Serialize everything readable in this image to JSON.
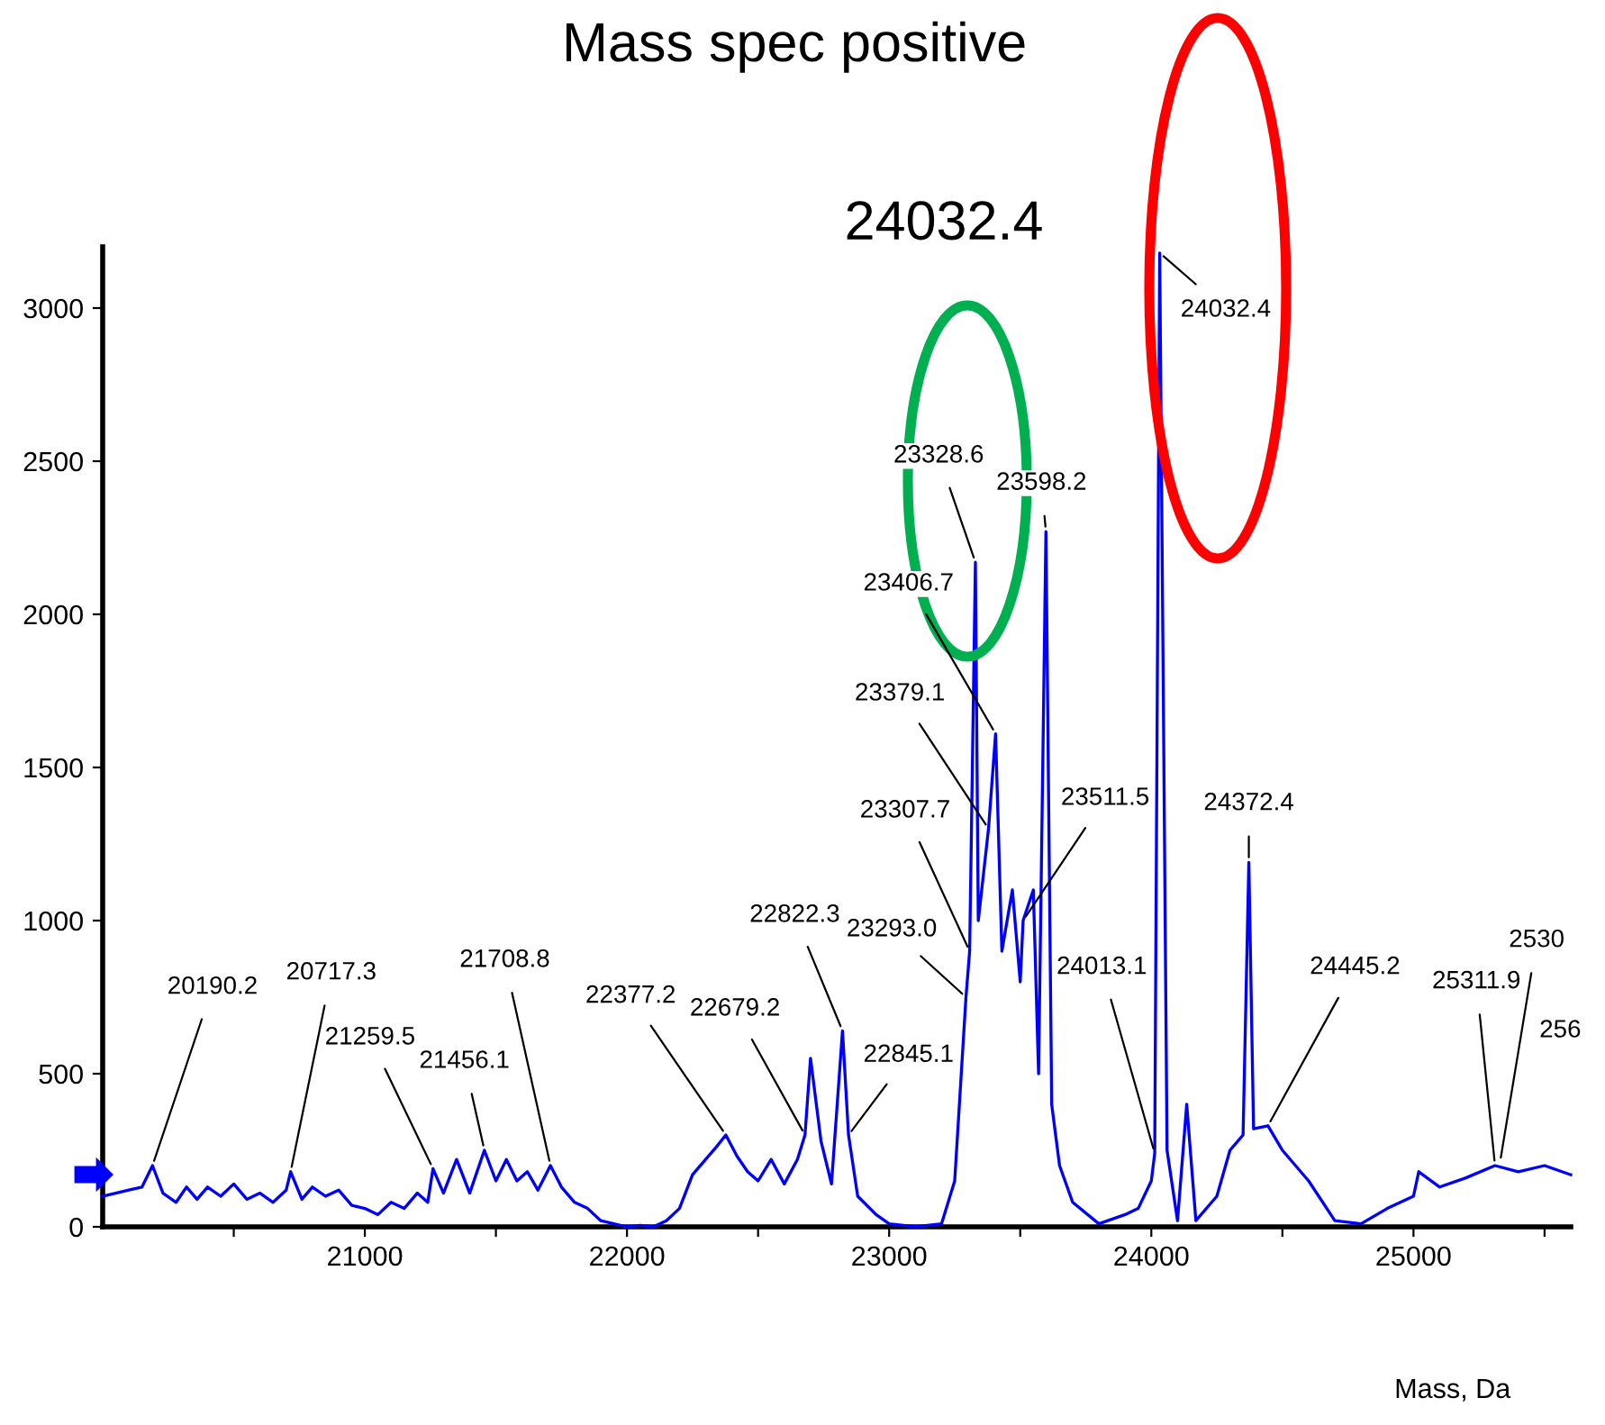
{
  "chart_data": {
    "type": "line",
    "title": "Mass spec positive",
    "xlabel": "Mass, Da",
    "x": [
      20000,
      20050,
      20100,
      20150,
      20190,
      20230,
      20280,
      20320,
      20360,
      20400,
      20450,
      20500,
      20550,
      20600,
      20650,
      20700,
      20717,
      20760,
      20800,
      20850,
      20900,
      20950,
      21000,
      21050,
      21100,
      21150,
      21200,
      21240,
      21260,
      21300,
      21350,
      21400,
      21456,
      21500,
      21540,
      21580,
      21620,
      21660,
      21708,
      21750,
      21800,
      21850,
      21900,
      21950,
      22000,
      22050,
      22100,
      22150,
      22200,
      22250,
      22300,
      22340,
      22377,
      22420,
      22460,
      22500,
      22550,
      22600,
      22650,
      22679,
      22700,
      22740,
      22780,
      22822,
      22845,
      22880,
      22950,
      23000,
      23100,
      23200,
      23250,
      23293,
      23307,
      23329,
      23340,
      23379,
      23406,
      23430,
      23470,
      23500,
      23511,
      23550,
      23570,
      23598,
      23620,
      23650,
      23700,
      23800,
      23900,
      23950,
      24000,
      24013,
      24032,
      24060,
      24100,
      24135,
      24170,
      24250,
      24300,
      24350,
      24372,
      24390,
      24445,
      24500,
      24600,
      24700,
      24800,
      24900,
      25000,
      25020,
      25100,
      25200,
      25311,
      25400,
      25500,
      25600
    ],
    "series": [
      {
        "color": "#0000ff",
        "values": [
          100,
          110,
          120,
          130,
          200,
          110,
          80,
          130,
          90,
          130,
          100,
          140,
          90,
          110,
          80,
          120,
          180,
          90,
          130,
          100,
          120,
          70,
          60,
          40,
          80,
          60,
          110,
          80,
          190,
          110,
          220,
          110,
          250,
          150,
          220,
          150,
          180,
          120,
          200,
          130,
          80,
          60,
          20,
          10,
          0,
          5,
          0,
          20,
          60,
          170,
          220,
          260,
          300,
          230,
          180,
          150,
          220,
          140,
          220,
          300,
          550,
          280,
          140,
          640,
          300,
          100,
          40,
          10,
          0,
          10,
          150,
          750,
          900,
          2170,
          1000,
          1300,
          1610,
          900,
          1100,
          800,
          1000,
          1100,
          500,
          2270,
          400,
          200,
          80,
          10,
          40,
          60,
          150,
          240,
          3180,
          250,
          20,
          400,
          20,
          100,
          250,
          300,
          1190,
          320,
          330,
          250,
          150,
          20,
          10,
          60,
          100,
          180,
          130,
          160,
          200,
          180,
          200,
          170
        ]
      }
    ],
    "xlim": [
      20000,
      25600
    ],
    "xticks": [
      {
        "value": 20500,
        "label": null
      },
      21000,
      {
        "value": 21500,
        "label": null
      },
      22000,
      {
        "value": 22500,
        "label": null
      },
      23000,
      {
        "value": 23500,
        "label": null
      },
      24000,
      {
        "value": 24500,
        "label": null
      },
      25000,
      {
        "value": 25500,
        "label": null
      }
    ],
    "ylim": [
      0,
      3200
    ],
    "yticks": [
      0,
      500,
      1000,
      1500,
      2000,
      2500,
      3000
    ],
    "grid": false,
    "marker": "none",
    "line_style": "solid",
    "annotations": [
      "24032.4",
      {
        "text": "20190.2",
        "x": 20190,
        "y": 200
      },
      {
        "text": "20717.3",
        "x": 20717,
        "y": 180
      },
      {
        "text": "21259.5",
        "x": 21260,
        "y": 190
      },
      {
        "text": "21456.1",
        "x": 21456,
        "y": 250
      },
      {
        "text": "21708.8",
        "x": 21708,
        "y": 200
      },
      {
        "text": "22377.2",
        "x": 22377,
        "y": 300
      },
      {
        "text": "22679.2",
        "x": 22679,
        "y": 300
      },
      {
        "text": "22822.3",
        "x": 22822,
        "y": 640
      },
      {
        "text": "22845.1",
        "x": 22845,
        "y": 300
      },
      {
        "text": "23293.0",
        "x": 23293,
        "y": 750
      },
      {
        "text": "23307.7",
        "x": 23307,
        "y": 900
      },
      {
        "text": "23379.1",
        "x": 23379,
        "y": 1300
      },
      {
        "text": "23406.7",
        "x": 23406,
        "y": 1610
      },
      {
        "text": "23328.6",
        "x": 23329,
        "y": 2170
      },
      {
        "text": "23598.2",
        "x": 23598,
        "y": 2270
      },
      {
        "text": "23511.5",
        "x": 23511,
        "y": 1000
      },
      {
        "text": "24013.1",
        "x": 24013,
        "y": 240
      },
      {
        "text": "24032.4",
        "x": 24032,
        "y": 3180
      },
      {
        "text": "24372.4",
        "x": 24372,
        "y": 1190
      },
      {
        "text": "24445.2",
        "x": 24445,
        "y": 330
      },
      {
        "text": "25311.9",
        "x": 25311,
        "y": 200
      },
      {
        "text": "2530",
        "x": 25330,
        "y": 210
      },
      "256"
    ]
  }
}
